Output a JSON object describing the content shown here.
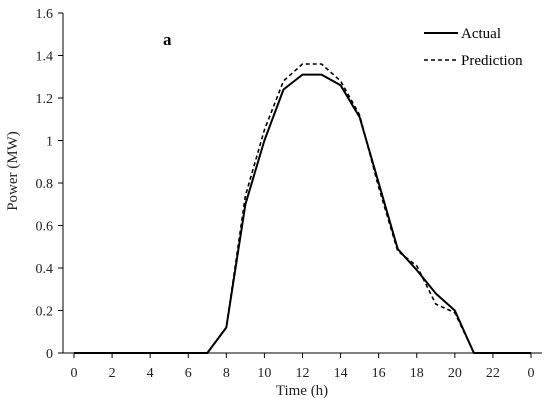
{
  "chart_data": {
    "type": "line",
    "panel_label": "a",
    "xlabel": "Time (h)",
    "ylabel": "Power (MW)",
    "ylim": [
      0,
      1.6
    ],
    "y_ticks": [
      "0",
      "0.2",
      "0.4",
      "0.6",
      "0.8",
      "1",
      "1.2",
      "1.4",
      "1.6"
    ],
    "x_ticks": [
      "0",
      "2",
      "4",
      "6",
      "8",
      "10",
      "12",
      "14",
      "16",
      "18",
      "20",
      "22",
      "0"
    ],
    "grid": false,
    "legend": "top-right",
    "colors": {
      "axis": "#000000",
      "series": "#000000"
    },
    "x": [
      0,
      1,
      2,
      3,
      4,
      5,
      6,
      7,
      8,
      9,
      10,
      11,
      12,
      13,
      14,
      15,
      16,
      17,
      18,
      19,
      20,
      21,
      22,
      23,
      24
    ],
    "series": [
      {
        "name": "Actual",
        "style": "solid",
        "values": [
          0,
          0,
          0,
          0,
          0,
          0,
          0,
          0,
          0.12,
          0.7,
          1.0,
          1.24,
          1.31,
          1.31,
          1.26,
          1.11,
          0.8,
          0.49,
          0.39,
          0.28,
          0.2,
          0.0,
          0,
          0,
          0
        ]
      },
      {
        "name": "Prediction",
        "style": "dashed",
        "values": [
          0,
          0,
          0,
          0,
          0,
          0,
          0,
          0,
          0.12,
          0.74,
          1.05,
          1.28,
          1.36,
          1.36,
          1.28,
          1.12,
          0.78,
          0.48,
          0.41,
          0.23,
          0.19,
          0.0,
          0,
          0,
          0
        ]
      }
    ]
  }
}
